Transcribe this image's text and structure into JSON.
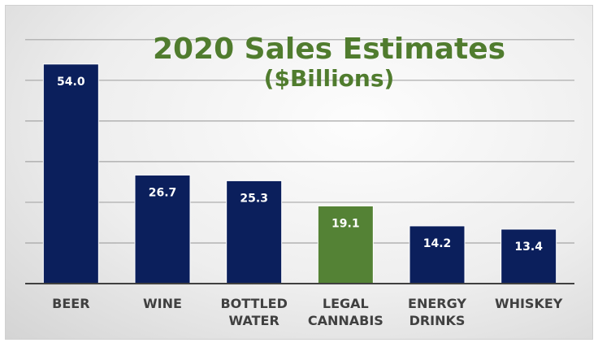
{
  "chart_data": {
    "type": "bar",
    "title": "2020 Sales Estimates",
    "subtitle": "($Billions)",
    "categories": [
      [
        "BEER"
      ],
      [
        "WINE"
      ],
      [
        "BOTTLED",
        "WATER"
      ],
      [
        "LEGAL",
        "CANNABIS"
      ],
      [
        "ENERGY",
        "DRINKS"
      ],
      [
        "WHISKEY"
      ]
    ],
    "values": [
      54.0,
      26.7,
      25.3,
      19.1,
      14.2,
      13.4
    ],
    "value_labels": [
      "54.0",
      "26.7",
      "25.3",
      "19.1",
      "14.2",
      "13.4"
    ],
    "bar_colors": [
      "#0b1f5c",
      "#0b1f5c",
      "#0b1f5c",
      "#548235",
      "#0b1f5c",
      "#0b1f5c"
    ],
    "highlight_index": 3,
    "ylim": [
      0,
      60
    ],
    "grid_step": 10,
    "grid": true,
    "legend": "none",
    "xlabel": "",
    "ylabel": ""
  },
  "colors": {
    "title": "#507c2e",
    "bar_default": "#0b1f5c",
    "bar_highlight": "#548235",
    "axis_labels": "#404040",
    "gridline": "#a6a6a6",
    "baseline": "#404040",
    "value_label": "#ffffff"
  }
}
